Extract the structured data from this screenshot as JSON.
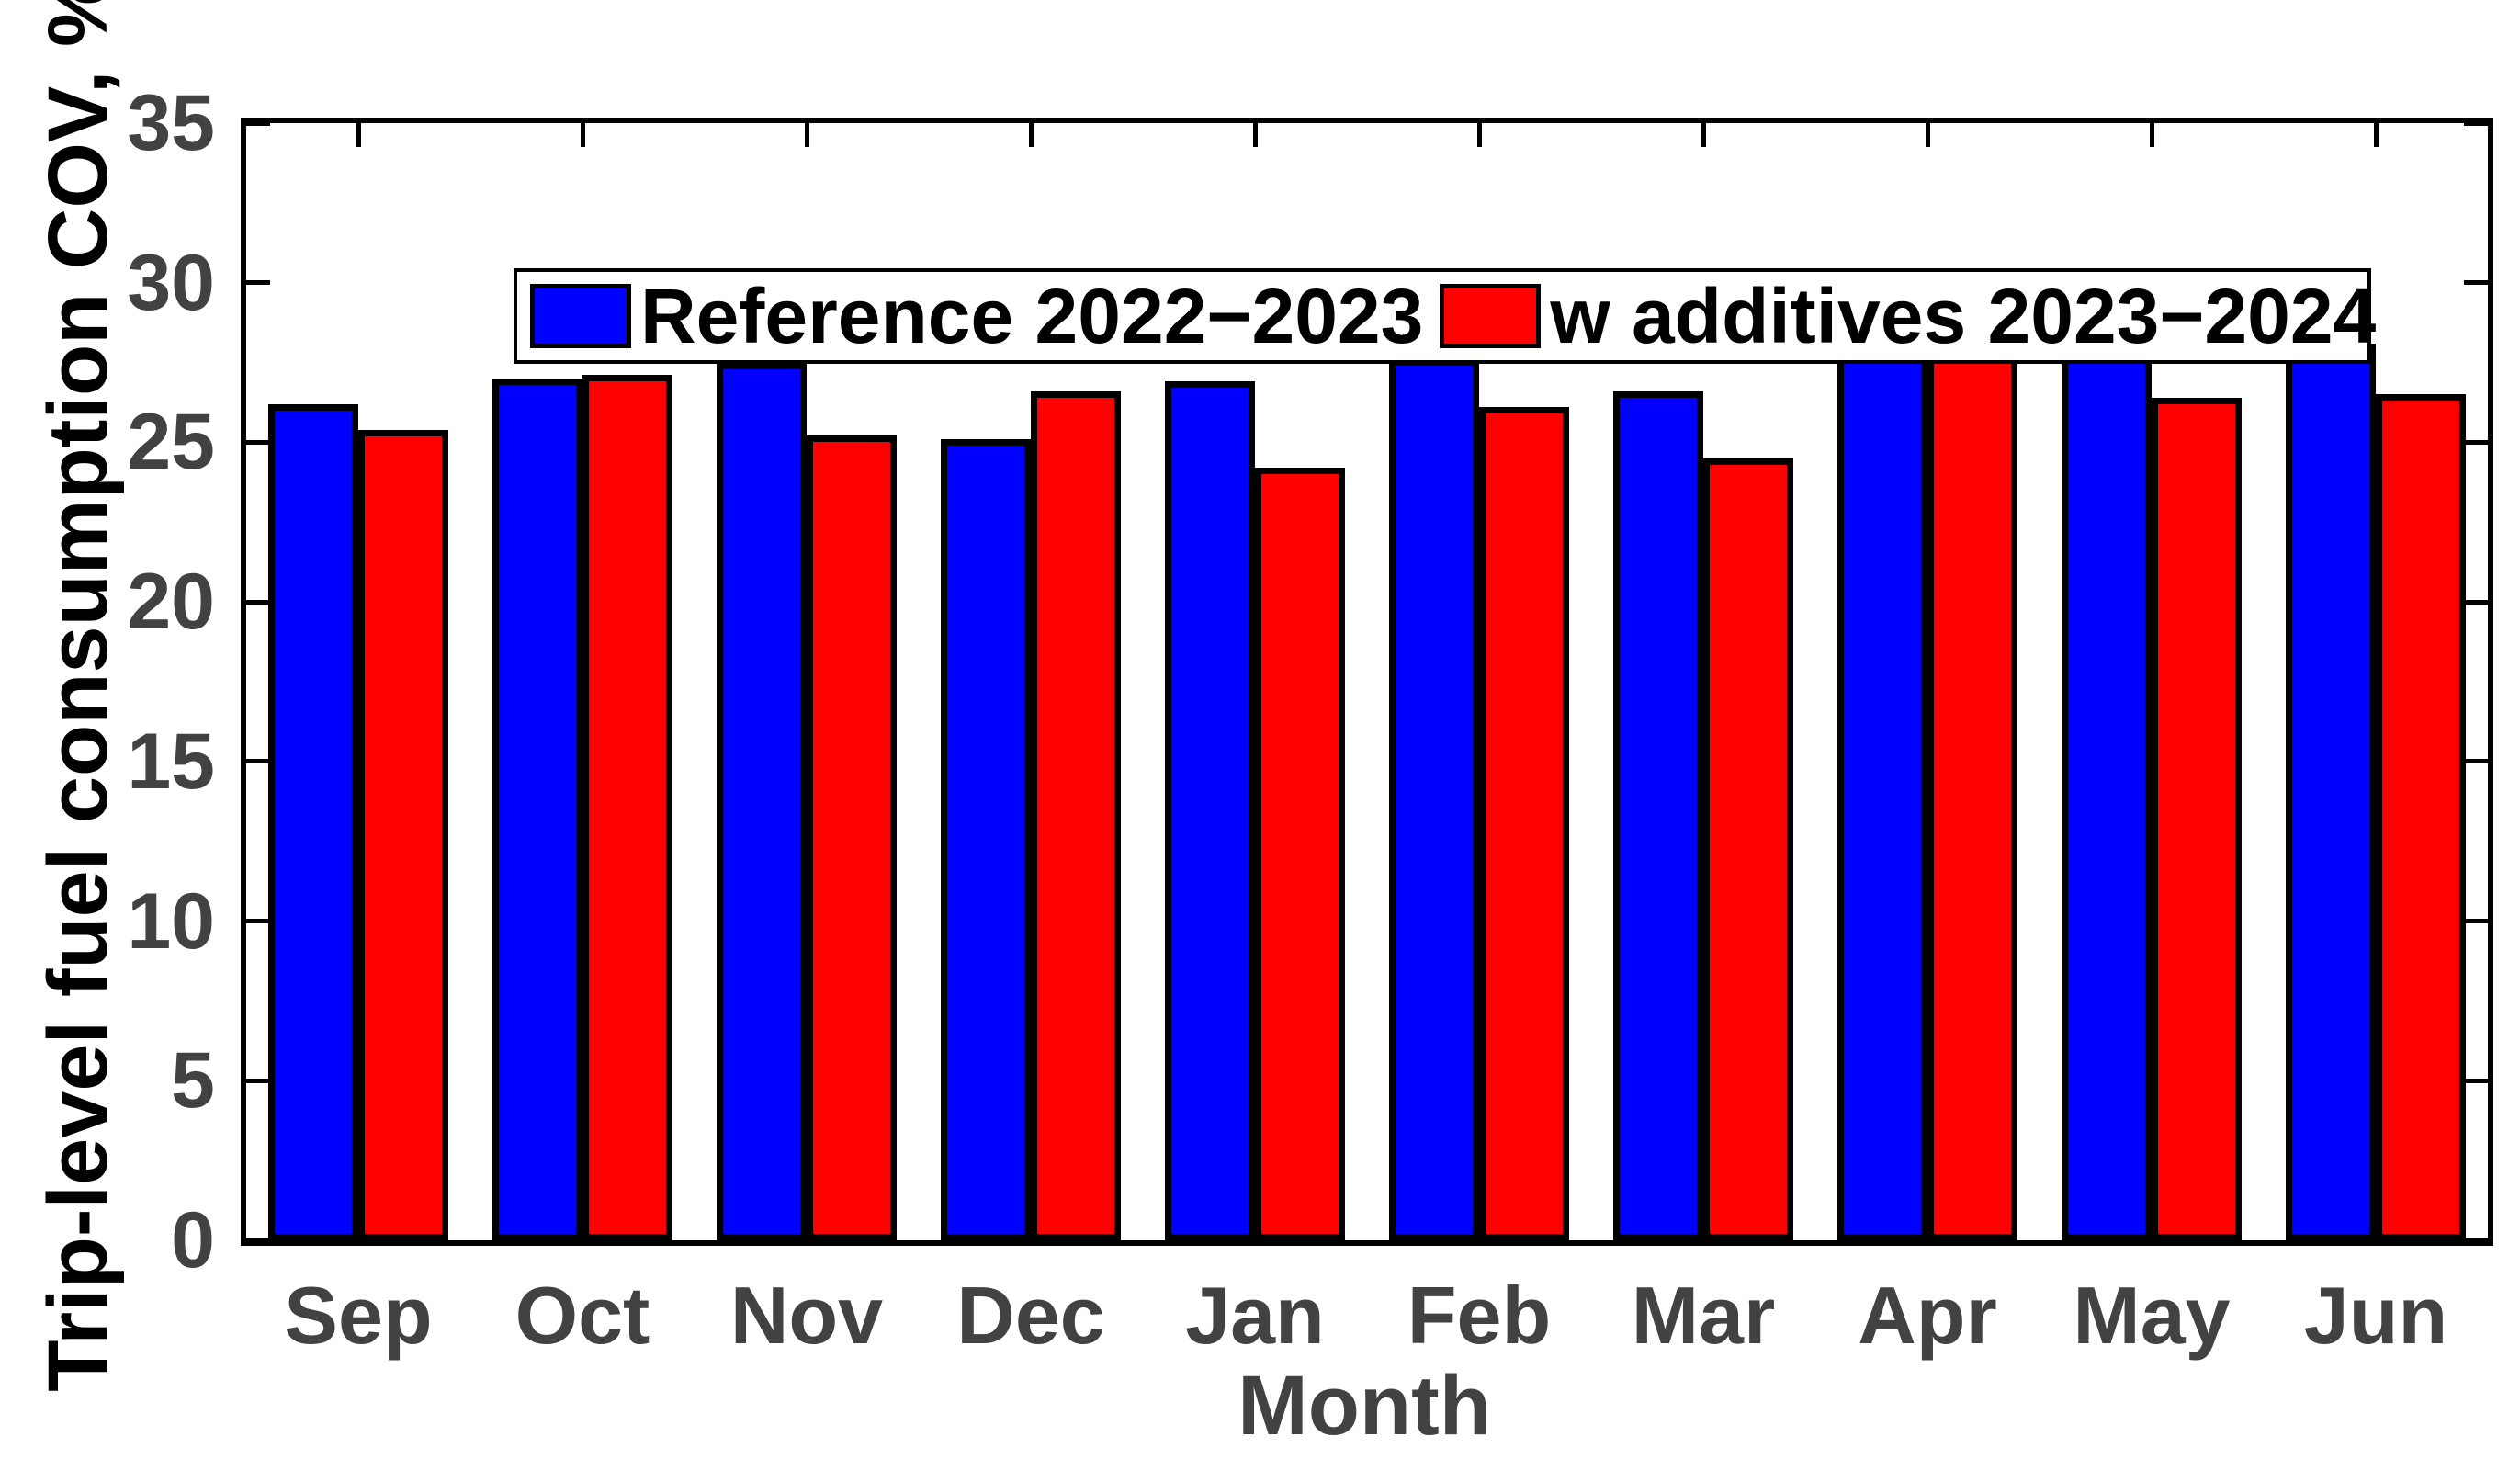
{
  "figure": {
    "background": "#ffffff",
    "frame_color": "#000000",
    "tick_label_color": "#424242",
    "xlabel_color": "#424242",
    "ylabel_color": "#000000",
    "legend_text_color": "#000000"
  },
  "chart_data": {
    "type": "bar",
    "title": "",
    "xlabel": "Month",
    "ylabel": "Trip-level fuel consumption COV, %",
    "categories": [
      "Sep",
      "Oct",
      "Nov",
      "Dec",
      "Jan",
      "Feb",
      "Mar",
      "Apr",
      "May",
      "Jun"
    ],
    "series": [
      {
        "name": "Reference 2022−2023",
        "color": "#0000ff",
        "values": [
          26.2,
          27.0,
          27.5,
          25.1,
          26.9,
          27.6,
          26.6,
          27.7,
          28.6,
          28.1
        ]
      },
      {
        "name": "w additives 2023−2024",
        "color": "#ff0000",
        "values": [
          25.4,
          27.1,
          25.2,
          26.6,
          24.2,
          26.1,
          24.5,
          28.3,
          26.4,
          26.5
        ]
      }
    ],
    "ylim": [
      0,
      35
    ],
    "yticks": [
      0,
      5,
      10,
      15,
      20,
      25,
      30,
      35
    ],
    "grid": false,
    "bar_edge_color": "#000000",
    "legend_position": "top-left-inside",
    "tick_direction": "in",
    "box": true
  }
}
